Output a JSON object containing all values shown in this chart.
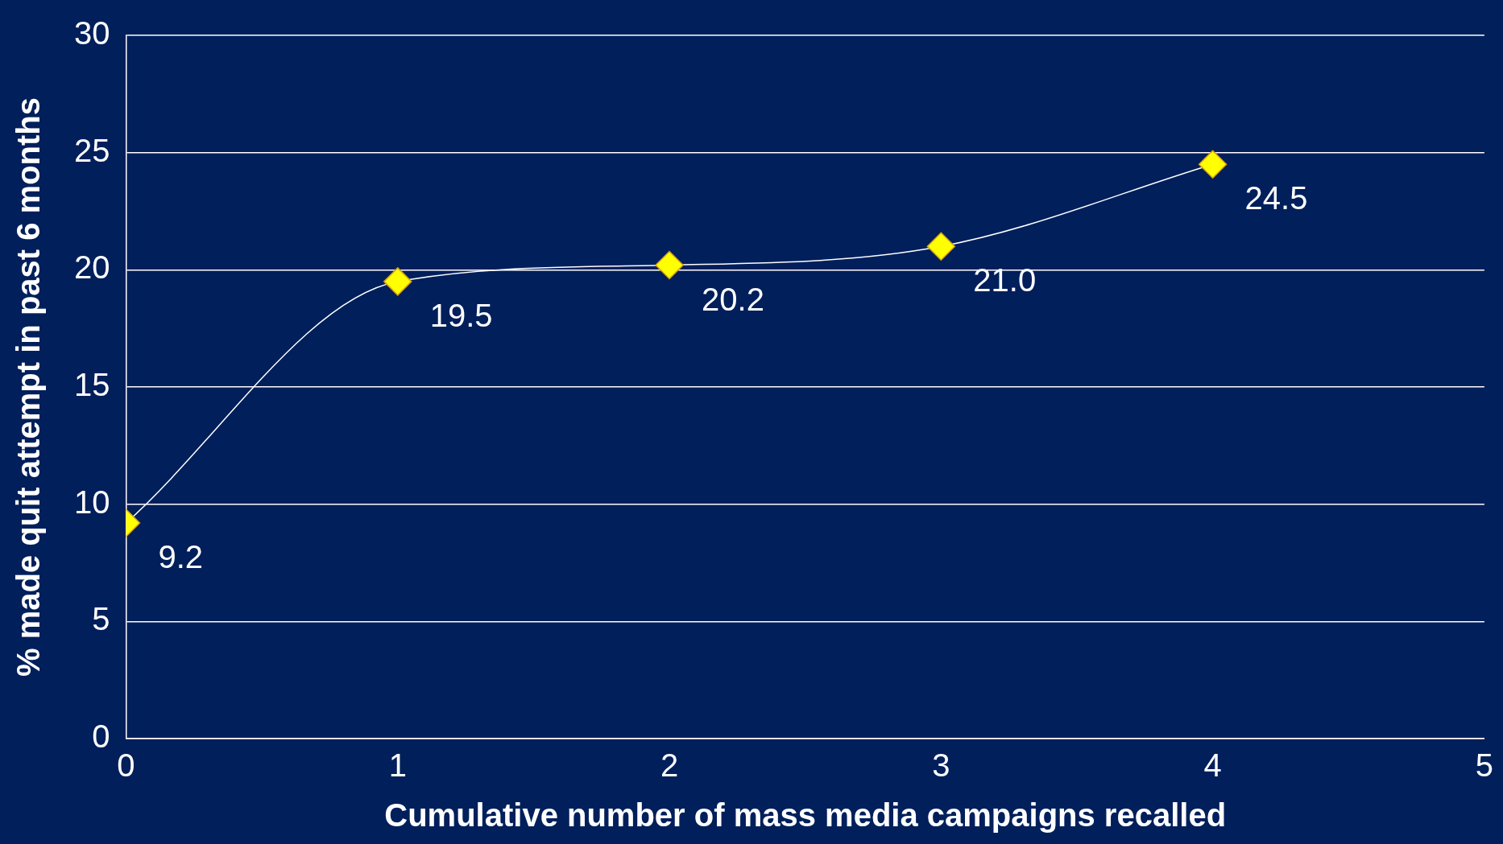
{
  "chart_data": {
    "type": "line",
    "xlabel": "Cumulative number of mass media campaigns recalled",
    "ylabel": "% made quit attempt in past 6 months",
    "x": [
      0,
      1,
      2,
      3,
      4
    ],
    "series": [
      {
        "color": "#ffff00",
        "values": [
          9.2,
          19.5,
          20.2,
          21.0,
          24.5
        ],
        "value_labels": [
          "9.2",
          "19.5",
          "20.2",
          "21.0",
          "24.5"
        ]
      }
    ],
    "xlim": [
      0,
      5
    ],
    "xticks": [
      0,
      1,
      2,
      3,
      4,
      5
    ],
    "ylim": [
      0,
      30
    ],
    "yticks": [
      0,
      5,
      10,
      15,
      20,
      25,
      30
    ],
    "grid": "y",
    "legend": false,
    "marker": "diamond",
    "line_style": "solid"
  }
}
